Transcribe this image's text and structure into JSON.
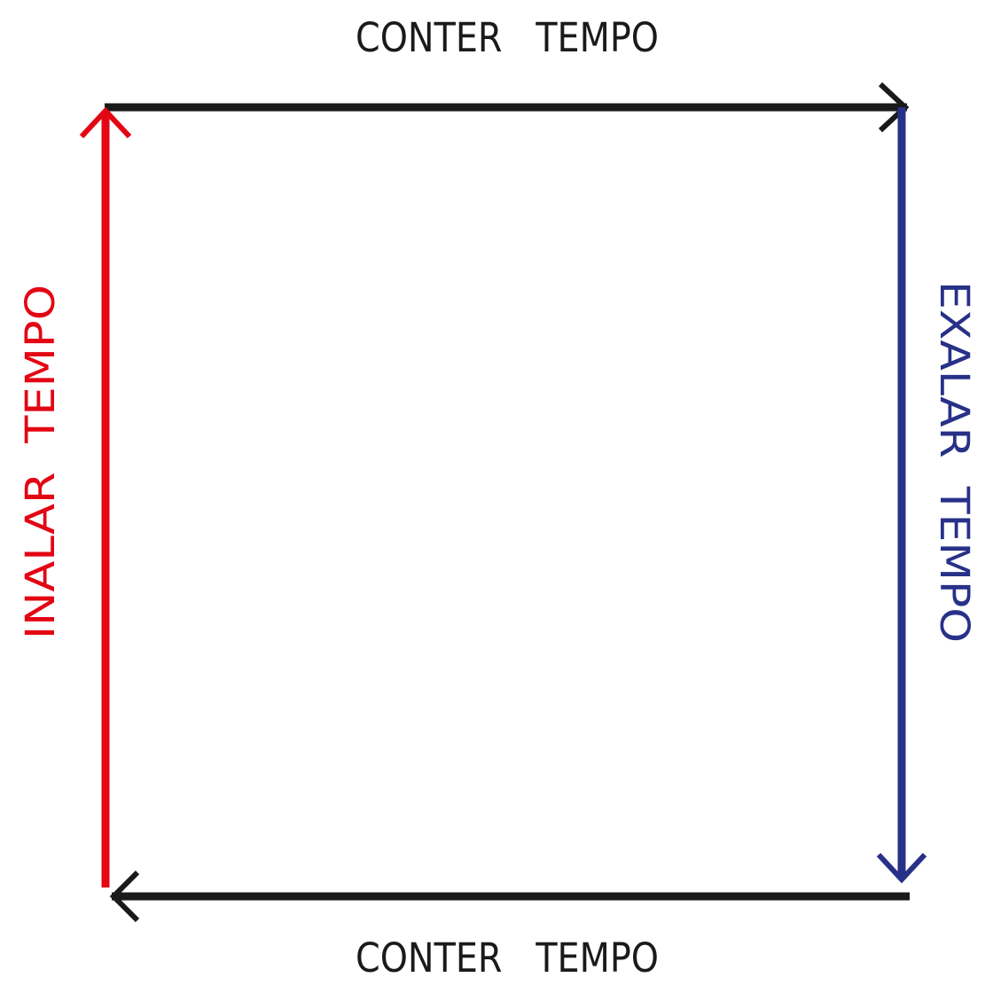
{
  "diagram": {
    "labels": {
      "top": "CONTER   TEMPO",
      "bottom": "CONTER   TEMPO",
      "left": "INALAR  TEMPO",
      "right": "EXALAR  TEMPO"
    },
    "colors": {
      "hold": "#1a1a1a",
      "inhale": "#e30613",
      "exhale": "#283188",
      "background": "#ffffff"
    }
  }
}
